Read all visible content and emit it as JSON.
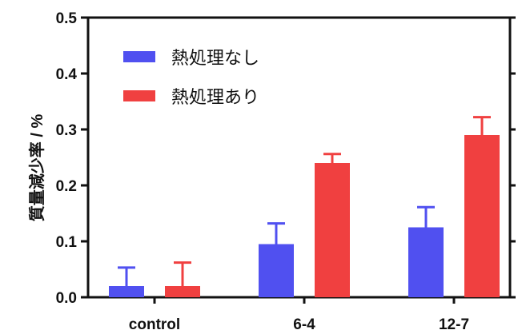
{
  "chart_data": {
    "type": "bar",
    "ylabel": "質量減少率 / %",
    "xlabel": "",
    "title": "",
    "categories": [
      "control",
      "6-4",
      "12-7"
    ],
    "ylim": [
      0,
      0.5
    ],
    "yticks": [
      "0.0",
      "0.1",
      "0.2",
      "0.3",
      "0.4",
      "0.5"
    ],
    "ytick_values": [
      0,
      0.1,
      0.2,
      0.3,
      0.4,
      0.5
    ],
    "series": [
      {
        "name": "熱処理なし",
        "values": [
          0.02,
          0.095,
          0.125
        ],
        "error": [
          0.033,
          0.037,
          0.036
        ],
        "color": "#5050f0"
      },
      {
        "name": "熱処理あり",
        "values": [
          0.02,
          0.24,
          0.29
        ],
        "error": [
          0.042,
          0.016,
          0.032
        ],
        "color": "#f04040"
      }
    ],
    "legend_position": "top-left",
    "grid": false
  }
}
